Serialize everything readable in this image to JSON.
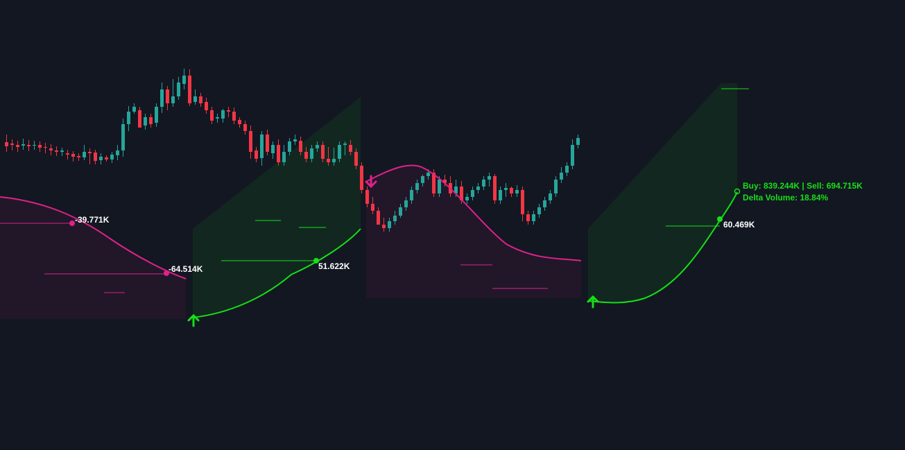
{
  "colors": {
    "background": "#131722",
    "bull_candle": "#26a69a",
    "bear_candle": "#f23645",
    "bull_trend": "#16e016",
    "bear_trend": "#e0218a",
    "label_text": "#ffffff"
  },
  "chart_data": {
    "type": "candlestick",
    "title": "",
    "xlabel": "",
    "ylabel": "",
    "ylim": [
      0,
      650
    ],
    "grid": false,
    "legend": "none",
    "candles": [
      [
        444,
        438,
        430,
        455
      ],
      [
        442,
        440,
        432,
        448
      ],
      [
        440,
        437,
        430,
        446
      ],
      [
        439,
        441,
        433,
        449
      ],
      [
        440,
        438,
        431,
        447
      ],
      [
        439,
        440,
        433,
        446
      ],
      [
        440,
        436,
        430,
        445
      ],
      [
        437,
        436,
        428,
        443
      ],
      [
        435,
        432,
        425,
        441
      ],
      [
        432,
        430,
        424,
        438
      ],
      [
        430,
        432,
        424,
        436
      ],
      [
        428,
        426,
        419,
        433
      ],
      [
        427,
        423,
        416,
        431
      ],
      [
        424,
        422,
        417,
        428
      ],
      [
        422,
        430,
        418,
        440
      ],
      [
        430,
        428,
        412,
        435
      ],
      [
        429,
        417,
        412,
        433
      ],
      [
        418,
        423,
        412,
        428
      ],
      [
        422,
        419,
        416,
        425
      ],
      [
        419,
        426,
        414,
        430
      ],
      [
        425,
        432,
        418,
        440
      ],
      [
        432,
        470,
        423,
        478
      ],
      [
        470,
        488,
        460,
        496
      ],
      [
        488,
        495,
        485,
        500
      ],
      [
        490,
        465,
        466,
        495
      ],
      [
        468,
        480,
        462,
        485
      ],
      [
        480,
        470,
        465,
        485
      ],
      [
        472,
        495,
        466,
        500
      ],
      [
        495,
        520,
        486,
        530
      ],
      [
        520,
        500,
        490,
        525
      ],
      [
        500,
        510,
        495,
        535
      ],
      [
        510,
        530,
        505,
        538
      ],
      [
        528,
        540,
        520,
        550
      ],
      [
        540,
        500,
        496,
        549
      ],
      [
        502,
        510,
        498,
        520
      ],
      [
        510,
        500,
        495,
        515
      ],
      [
        502,
        490,
        485,
        508
      ],
      [
        490,
        475,
        470,
        495
      ],
      [
        478,
        480,
        472,
        485
      ],
      [
        478,
        490,
        472,
        492
      ],
      [
        490,
        488,
        480,
        495
      ],
      [
        488,
        475,
        470,
        494
      ],
      [
        476,
        470,
        465,
        480
      ],
      [
        470,
        460,
        455,
        475
      ],
      [
        460,
        430,
        420,
        468
      ],
      [
        432,
        420,
        415,
        437
      ],
      [
        421,
        455,
        410,
        460
      ],
      [
        455,
        430,
        425,
        462
      ],
      [
        428,
        440,
        420,
        445
      ],
      [
        440,
        415,
        410,
        448
      ],
      [
        415,
        430,
        410,
        440
      ],
      [
        430,
        445,
        425,
        450
      ],
      [
        445,
        448,
        440,
        455
      ],
      [
        446,
        430,
        425,
        452
      ],
      [
        430,
        420,
        415,
        437
      ],
      [
        420,
        435,
        415,
        440
      ],
      [
        435,
        440,
        430,
        445
      ],
      [
        440,
        420,
        415,
        445
      ],
      [
        420,
        415,
        410,
        437
      ],
      [
        415,
        420,
        410,
        436
      ],
      [
        420,
        440,
        415,
        445
      ],
      [
        440,
        442,
        425,
        445
      ],
      [
        440,
        430,
        425,
        447
      ],
      [
        430,
        410,
        405,
        435
      ],
      [
        410,
        375,
        370,
        415
      ],
      [
        375,
        355,
        350,
        380
      ],
      [
        355,
        345,
        340,
        365
      ],
      [
        345,
        325,
        325,
        350
      ],
      [
        325,
        320,
        315,
        335
      ],
      [
        320,
        330,
        315,
        335
      ],
      [
        330,
        338,
        325,
        345
      ],
      [
        338,
        350,
        335,
        355
      ],
      [
        350,
        360,
        345,
        365
      ],
      [
        360,
        375,
        355,
        380
      ],
      [
        375,
        385,
        370,
        390
      ],
      [
        385,
        395,
        380,
        397
      ],
      [
        395,
        400,
        390,
        405
      ],
      [
        400,
        370,
        365,
        405
      ],
      [
        370,
        390,
        365,
        395
      ],
      [
        390,
        385,
        380,
        397
      ],
      [
        385,
        370,
        365,
        395
      ],
      [
        370,
        380,
        365,
        390
      ],
      [
        380,
        360,
        355,
        388
      ],
      [
        360,
        365,
        355,
        370
      ],
      [
        365,
        375,
        360,
        380
      ],
      [
        375,
        380,
        370,
        385
      ],
      [
        380,
        390,
        375,
        395
      ],
      [
        390,
        395,
        380,
        400
      ],
      [
        395,
        360,
        355,
        398
      ],
      [
        360,
        375,
        355,
        380
      ],
      [
        375,
        378,
        365,
        385
      ],
      [
        378,
        370,
        365,
        380
      ],
      [
        370,
        375,
        365,
        382
      ],
      [
        375,
        340,
        330,
        380
      ],
      [
        340,
        330,
        325,
        345
      ],
      [
        330,
        340,
        325,
        345
      ],
      [
        340,
        350,
        335,
        355
      ],
      [
        350,
        360,
        345,
        365
      ],
      [
        360,
        370,
        355,
        375
      ],
      [
        370,
        390,
        365,
        395
      ],
      [
        390,
        400,
        385,
        408
      ],
      [
        400,
        410,
        395,
        415
      ],
      [
        410,
        440,
        405,
        448
      ],
      [
        440,
        450,
        435,
        455
      ]
    ],
    "series": [
      {
        "name": "",
        "values": []
      }
    ],
    "signals": [
      {
        "direction": "up",
        "candle": 52
      },
      {
        "direction": "down",
        "candle": 74
      },
      {
        "direction": "up",
        "candle": 113
      }
    ],
    "annotations": [
      {
        "text": "-39.771K"
      },
      {
        "text": "-64.514K"
      },
      {
        "text": "51.622K"
      },
      {
        "text": "60.469K"
      },
      {
        "text": "Buy: 839.244K | Sell: 694.715K"
      },
      {
        "text": "Delta Volume: 18.84%"
      }
    ]
  }
}
